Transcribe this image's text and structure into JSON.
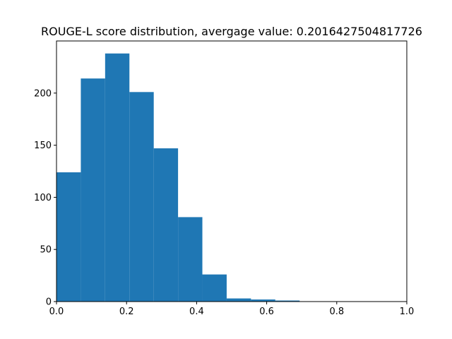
{
  "chart_data": {
    "type": "bar",
    "title": "ROUGE-L score distribution, avergage value: 0.2016427504817726",
    "xlabel": "",
    "ylabel": "",
    "bin_edges": [
      0.0,
      0.0694,
      0.1388,
      0.2082,
      0.2776,
      0.347,
      0.4164,
      0.4858,
      0.5552,
      0.6246,
      0.694
    ],
    "values": [
      124,
      214,
      238,
      201,
      147,
      81,
      26,
      3,
      2,
      1
    ],
    "xlim": [
      0,
      1
    ],
    "ylim": [
      0,
      250
    ],
    "xticks": [
      0.0,
      0.2,
      0.4,
      0.6,
      0.8,
      1.0
    ],
    "xtick_labels": [
      "0.0",
      "0.2",
      "0.4",
      "0.6",
      "0.8",
      "1.0"
    ],
    "yticks": [
      0,
      50,
      100,
      150,
      200
    ],
    "ytick_labels": [
      "0",
      "50",
      "100",
      "150",
      "200"
    ],
    "bar_color": "#1f77b4",
    "grid": false,
    "legend": "none"
  }
}
